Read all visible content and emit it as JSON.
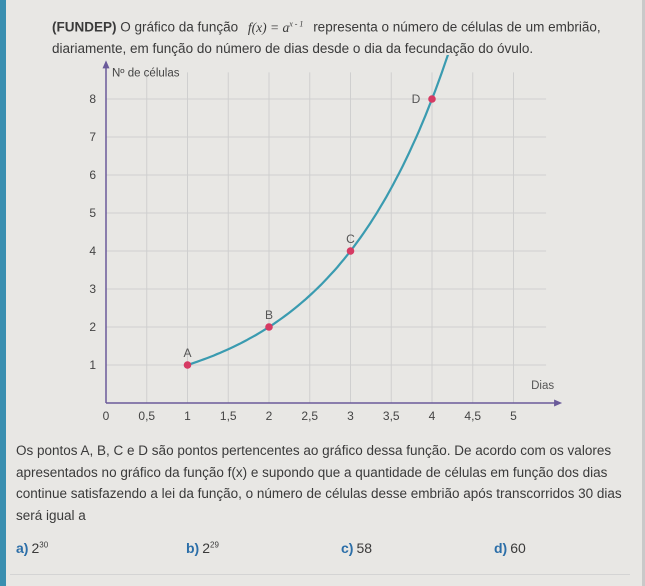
{
  "question": {
    "source": "(FUNDEP)",
    "intro_before": "O gráfico da função",
    "formula": "f(x) = a",
    "formula_exp": "x - 1",
    "intro_after": "representa o número de células de um embrião, diariamente, em função do número de dias desde o dia da fecundação do óvulo.",
    "paragraph": "Os pontos A, B, C e D são pontos pertencentes ao gráfico dessa função. De acordo com os valores apresentados no gráfico da função f(x) e supondo que a quantidade de células em função dos dias continue satisfazendo a lei da função, o número de células desse embrião após transcorridos 30 dias será igual a",
    "options": [
      {
        "letter": "a)",
        "base": "2",
        "exp": "30"
      },
      {
        "letter": "b)",
        "base": "2",
        "exp": "29"
      },
      {
        "letter": "c)",
        "base": "58",
        "exp": ""
      },
      {
        "letter": "d)",
        "base": "60",
        "exp": ""
      }
    ]
  },
  "chart_data": {
    "type": "line",
    "xlabel": "Dias",
    "ylabel": "Nº de células",
    "xlim": [
      0,
      5.4
    ],
    "ylim": [
      0,
      8.7
    ],
    "xticks": [
      "0",
      "0,5",
      "1",
      "1,5",
      "2",
      "2,5",
      "3",
      "3,5",
      "4",
      "4,5",
      "5"
    ],
    "xtick_values": [
      0,
      0.5,
      1,
      1.5,
      2,
      2.5,
      3,
      3.5,
      4,
      4.5,
      5
    ],
    "yticks": [
      "1",
      "2",
      "3",
      "4",
      "5",
      "6",
      "7",
      "8"
    ],
    "ytick_values": [
      1,
      2,
      3,
      4,
      5,
      6,
      7,
      8
    ],
    "grid": true,
    "curve": {
      "function": "2^(x-1)",
      "x_from": 1,
      "x_to": 4.2
    },
    "points": [
      {
        "label": "A",
        "x": 1,
        "y": 1
      },
      {
        "label": "B",
        "x": 2,
        "y": 2
      },
      {
        "label": "C",
        "x": 3,
        "y": 4
      },
      {
        "label": "D",
        "x": 4,
        "y": 8
      }
    ],
    "colors": {
      "curve": "#3a9bb0",
      "points": "#d63a63",
      "axis": "#6a5a9a",
      "grid": "#cfcfcf"
    }
  }
}
